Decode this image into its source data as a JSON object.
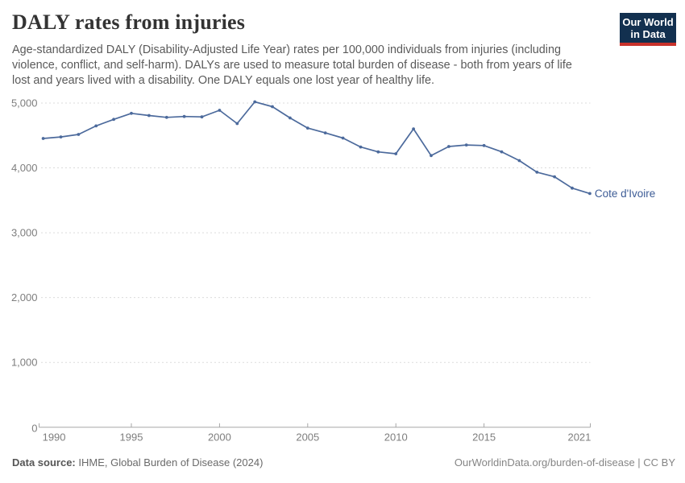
{
  "header": {
    "title": "DALY rates from injuries",
    "subtitle": "Age-standardized DALY (Disability-Adjusted Life Year) rates per 100,000 individuals from injuries (including violence, conflict, and self-harm). DALYs are used to measure total burden of disease - both from years of life lost and years lived with a disability. One DALY equals one lost year of healthy life.",
    "logo": {
      "line1": "Our World",
      "line2": "in Data",
      "bg_color": "#12304F",
      "stripe_color": "#C8322B",
      "text_color": "#FFFFFF"
    }
  },
  "chart_data": {
    "type": "line",
    "title": "DALY rates from injuries",
    "xlabel": "",
    "ylabel": "",
    "x": [
      1990,
      1991,
      1992,
      1993,
      1994,
      1995,
      1996,
      1997,
      1998,
      1999,
      2000,
      2001,
      2002,
      2003,
      2004,
      2005,
      2006,
      2007,
      2008,
      2009,
      2010,
      2011,
      2012,
      2013,
      2014,
      2015,
      2016,
      2017,
      2018,
      2019,
      2020,
      2021
    ],
    "series": [
      {
        "name": "Cote d'Ivoire",
        "values": [
          4454,
          4478,
          4516,
          4648,
          4748,
          4841,
          4808,
          4779,
          4793,
          4786,
          4888,
          4683,
          5018,
          4944,
          4770,
          4614,
          4539,
          4460,
          4322,
          4247,
          4218,
          4602,
          4189,
          4330,
          4353,
          4345,
          4248,
          4113,
          3934,
          3863,
          3688,
          3605
        ]
      }
    ],
    "x_ticks": [
      1990,
      1995,
      2000,
      2005,
      2010,
      2015,
      2021
    ],
    "y_ticks": [
      0,
      1000,
      2000,
      3000,
      4000,
      5000
    ],
    "xlim": [
      1990,
      2021
    ],
    "ylim": [
      0,
      5000
    ],
    "grid": "horizontal-dashed",
    "legend": "series-end-label"
  },
  "footer": {
    "source_label": "Data source:",
    "source_text": "IHME, Global Burden of Disease (2024)",
    "credit": "OurWorldinData.org/burden-of-disease | CC BY"
  },
  "colors": {
    "line": "#4C6A9C",
    "entity_label": "#3D5C96",
    "grid": "#DBDBDB",
    "axis": "#A7A7A7",
    "tick_text": "#7E7E7E"
  }
}
